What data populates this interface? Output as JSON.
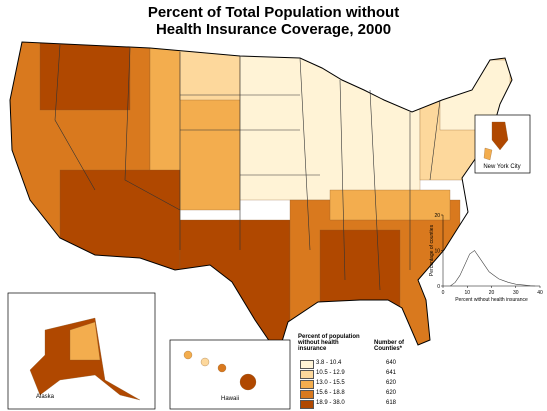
{
  "title": [
    "Percent of Total Population without",
    "Health Insurance Coverage, 2000"
  ],
  "legend": {
    "title": "Percent of population without health insurance",
    "count_title": "Number of Counties*",
    "classes": [
      {
        "range": "3.8 - 10.4",
        "count": 640,
        "color": "#fff3d6"
      },
      {
        "range": "10.5 - 12.9",
        "count": 641,
        "color": "#fdd89c"
      },
      {
        "range": "13.0 - 15.5",
        "count": 620,
        "color": "#f3ad4e"
      },
      {
        "range": "15.6 - 18.8",
        "count": 620,
        "color": "#d9791e"
      },
      {
        "range": "18.9 - 38.0",
        "count": 618,
        "color": "#b04800"
      }
    ]
  },
  "insets": {
    "alaska": "Alaska",
    "hawaii": "Hawaii",
    "nyc": "New York City"
  },
  "histogram": {
    "xlabel": "Percent without health insurance",
    "ylabel": "Percentage of counties",
    "xlim": [
      0,
      40
    ],
    "xticks": [
      0,
      10,
      20,
      30,
      40
    ],
    "ylim": [
      0,
      20
    ],
    "yticks": [
      0,
      10,
      20
    ],
    "x": [
      3,
      5,
      7,
      9,
      11,
      13,
      15,
      17,
      19,
      21,
      23,
      25,
      27,
      30,
      33,
      36,
      38
    ],
    "values": [
      0,
      1,
      3,
      6,
      9,
      10,
      8,
      6,
      4,
      3,
      2,
      1.5,
      1,
      0.5,
      0.3,
      0.1,
      0
    ]
  }
}
